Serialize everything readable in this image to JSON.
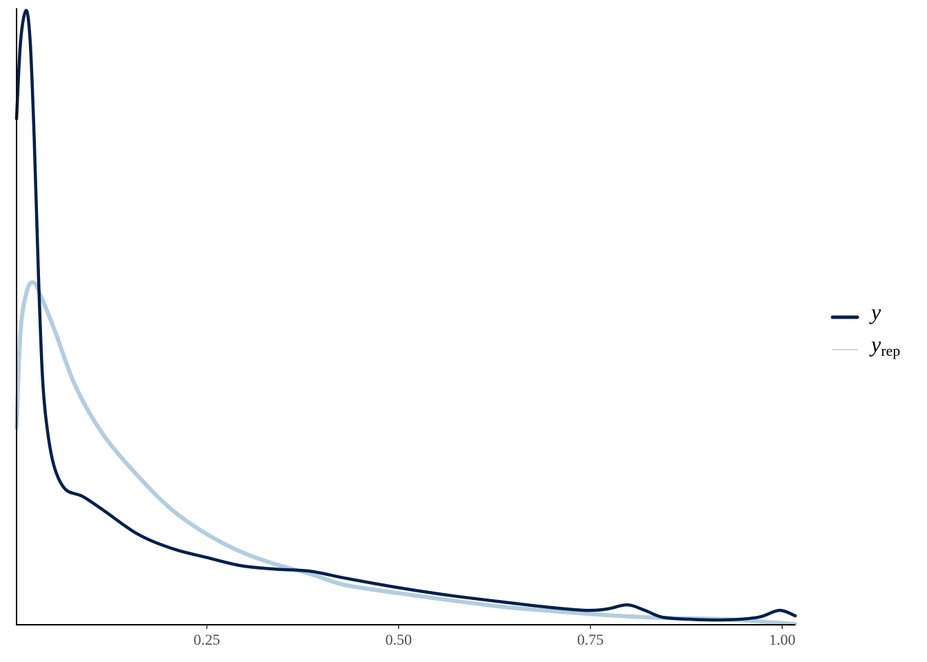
{
  "chart_data": {
    "type": "density",
    "xlim": [
      0.002,
      1.017
    ],
    "ylim": [
      0,
      9
    ],
    "xticks": [
      {
        "value": 0.25,
        "label": "0.25"
      },
      {
        "value": 0.5,
        "label": "0.50"
      },
      {
        "value": 0.75,
        "label": "0.75"
      },
      {
        "value": 1.0,
        "label": "1.00"
      }
    ],
    "series": [
      {
        "name": "y",
        "color": "#011f4b",
        "x": [
          0.002,
          0.0072,
          0.0144,
          0.0198,
          0.025,
          0.0306,
          0.036,
          0.043,
          0.052,
          0.066,
          0.088,
          0.115,
          0.16,
          0.205,
          0.25,
          0.295,
          0.34,
          0.385,
          0.43,
          0.5,
          0.565,
          0.637,
          0.7,
          0.745,
          0.772,
          0.798,
          0.821,
          0.844,
          0.88,
          0.924,
          0.969,
          0.996,
          1.017
        ],
        "values": [
          7.37,
          8.49,
          8.95,
          8.49,
          7.09,
          5.08,
          3.57,
          2.77,
          2.27,
          1.97,
          1.87,
          1.67,
          1.32,
          1.11,
          0.98,
          0.86,
          0.81,
          0.78,
          0.68,
          0.54,
          0.43,
          0.33,
          0.25,
          0.21,
          0.23,
          0.29,
          0.21,
          0.11,
          0.08,
          0.07,
          0.11,
          0.21,
          0.13
        ]
      },
      {
        "name": "y",
        "subscript": "rep",
        "color": "#b3cde0",
        "x": [
          0.002,
          0.0072,
          0.016,
          0.025,
          0.034,
          0.052,
          0.079,
          0.115,
          0.16,
          0.205,
          0.25,
          0.295,
          0.34,
          0.385,
          0.43,
          0.5,
          0.565,
          0.637,
          0.7,
          0.772,
          0.844,
          0.924,
          1.017
        ],
        "values": [
          2.87,
          4.28,
          4.88,
          4.98,
          4.78,
          4.28,
          3.47,
          2.77,
          2.17,
          1.67,
          1.32,
          1.06,
          0.88,
          0.74,
          0.58,
          0.46,
          0.36,
          0.26,
          0.2,
          0.14,
          0.1,
          0.08,
          0.01
        ]
      }
    ]
  }
}
